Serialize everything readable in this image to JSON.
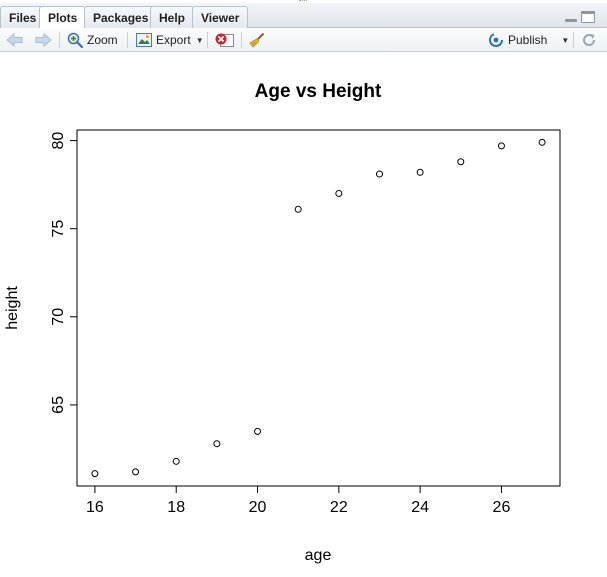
{
  "tabs": [
    {
      "label": "Files",
      "active": false
    },
    {
      "label": "Plots",
      "active": true
    },
    {
      "label": "Packages",
      "active": false
    },
    {
      "label": "Help",
      "active": false
    },
    {
      "label": "Viewer",
      "active": false
    }
  ],
  "toolbar": {
    "zoom_label": "Zoom",
    "export_label": "Export",
    "publish_label": "Publish"
  },
  "icons": {
    "back": "arrow-left-icon",
    "forward": "arrow-right-icon",
    "zoom": "magnifier-plus-icon",
    "export": "export-image-icon",
    "remove": "remove-plot-icon",
    "clear": "broom-icon",
    "publish": "publish-icon",
    "refresh": "refresh-icon"
  },
  "colors": {
    "accent": "#2d6fb7",
    "remove": "#c8252c",
    "points": "#000000"
  },
  "chart_data": {
    "type": "scatter",
    "title": "Age vs Height",
    "xlabel": "age",
    "ylabel": "height",
    "x": [
      16,
      17,
      18,
      19,
      20,
      21,
      22,
      23,
      24,
      25,
      26,
      27
    ],
    "y": [
      61.1,
      61.2,
      61.8,
      62.8,
      63.5,
      76.1,
      77.0,
      78.1,
      78.2,
      78.8,
      79.7,
      79.9
    ],
    "xlim": [
      15.56,
      27.44
    ],
    "ylim": [
      60.4,
      80.6
    ],
    "xticks": [
      "16",
      "18",
      "20",
      "22",
      "24",
      "26"
    ],
    "yticks": [
      "65",
      "70",
      "75",
      "80"
    ],
    "grid": false,
    "legend": "none"
  }
}
